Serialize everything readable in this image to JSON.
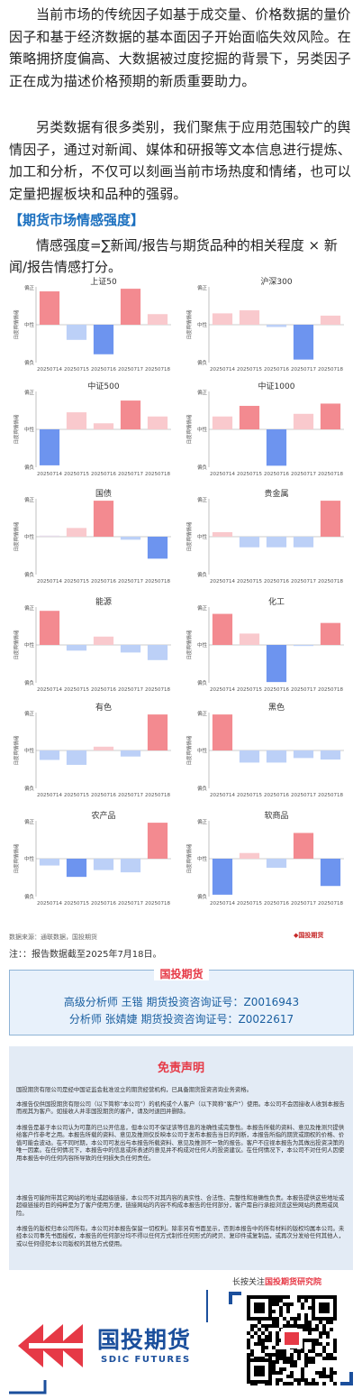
{
  "intro": {
    "p1": "当前市场的传统因子如基于成交量、价格数据的量价因子和基于经济数据的基本面因子开始面临失效风险。在策略拥挤度偏高、大数据被过度挖掘的背景下，另类因子正在成为描述价格预期的新质重要助力。",
    "p2": "另类数据有很多类别，我们聚焦于应用范围较广的舆情因子，通过对新闻、媒体和研报等文本信息进行提炼、加工和分析，不仅可以刻画当前市场热度和情绪，也可以定量把握板块和品种的强弱。"
  },
  "section_title": "【期货市场情感强度】",
  "formula": "情感强度=∑新闻/报告与期货品种的相关程度 × 新闻/报告情感打分。",
  "chart_common": {
    "ylabel": "日度舆情情绪",
    "ytick_top": "偏正",
    "ytick_mid": "中性",
    "ytick_bottom": "偏负",
    "dates": [
      "20250714",
      "20250715",
      "20250716",
      "20250717",
      "20250718"
    ]
  },
  "chart_data": [
    {
      "type": "bar",
      "title": "上证50",
      "categories": [
        "20250714",
        "20250715",
        "20250716",
        "20250717",
        "20250718"
      ],
      "values": [
        0.88,
        -0.4,
        -0.78,
        0.95,
        0.28
      ],
      "ylim": [
        -1,
        1
      ]
    },
    {
      "type": "bar",
      "title": "沪深300",
      "categories": [
        "20250714",
        "20250715",
        "20250716",
        "20250717",
        "20250718"
      ],
      "values": [
        0.3,
        0.38,
        -0.06,
        -0.92,
        0.24
      ],
      "ylim": [
        -1,
        1
      ]
    },
    {
      "type": "bar",
      "title": "中证500",
      "categories": [
        "20250714",
        "20250715",
        "20250716",
        "20250717",
        "20250718"
      ],
      "values": [
        -0.95,
        0.45,
        0.16,
        0.76,
        0.34
      ],
      "ylim": [
        -1,
        1
      ]
    },
    {
      "type": "bar",
      "title": "中证1000",
      "categories": [
        "20250714",
        "20250715",
        "20250716",
        "20250717",
        "20250718"
      ],
      "values": [
        0.34,
        0.62,
        -0.96,
        0.41,
        0.68
      ],
      "ylim": [
        -1,
        1
      ]
    },
    {
      "type": "bar",
      "title": "国债",
      "categories": [
        "20250714",
        "20250715",
        "20250716",
        "20250717",
        "20250718"
      ],
      "values": [
        0.03,
        0.23,
        0.95,
        -0.08,
        -0.58
      ],
      "ylim": [
        -1,
        1
      ]
    },
    {
      "type": "bar",
      "title": "贵金属",
      "categories": [
        "20250714",
        "20250715",
        "20250716",
        "20250717",
        "20250718"
      ],
      "values": [
        0.12,
        -0.28,
        -0.28,
        -0.28,
        0.95
      ],
      "ylim": [
        -1,
        1
      ]
    },
    {
      "type": "bar",
      "title": "能源",
      "categories": [
        "20250714",
        "20250715",
        "20250716",
        "20250717",
        "20250718"
      ],
      "values": [
        0.9,
        -0.15,
        0.22,
        -0.2,
        -0.4
      ],
      "ylim": [
        -1,
        1
      ]
    },
    {
      "type": "bar",
      "title": "化工",
      "categories": [
        "20250714",
        "20250715",
        "20250716",
        "20250717",
        "20250718"
      ],
      "values": [
        0.82,
        0.3,
        -0.98,
        -0.02,
        0.58
      ],
      "ylim": [
        -1,
        1
      ]
    },
    {
      "type": "bar",
      "title": "有色",
      "categories": [
        "20250714",
        "20250715",
        "20250716",
        "20250717",
        "20250718"
      ],
      "values": [
        -0.25,
        -0.38,
        0.1,
        -0.16,
        0.95
      ],
      "ylim": [
        -1,
        1
      ]
    },
    {
      "type": "bar",
      "title": "黑色",
      "categories": [
        "20250714",
        "20250715",
        "20250716",
        "20250717",
        "20250718"
      ],
      "values": [
        0.95,
        -0.32,
        -0.32,
        -0.2,
        -0.24
      ],
      "ylim": [
        -1,
        1
      ]
    },
    {
      "type": "bar",
      "title": "农产品",
      "categories": [
        "20250714",
        "20250715",
        "20250716",
        "20250717",
        "20250718"
      ],
      "values": [
        -0.18,
        -0.48,
        -0.3,
        -0.36,
        0.95
      ],
      "ylim": [
        -1,
        1
      ]
    },
    {
      "type": "bar",
      "title": "软商品",
      "categories": [
        "20250714",
        "20250715",
        "20250716",
        "20250717",
        "20250718"
      ],
      "values": [
        -0.95,
        0.15,
        -0.24,
        0.68,
        -0.72
      ],
      "ylim": [
        -1,
        1
      ]
    }
  ],
  "colors": {
    "pos_strong": "#f38a90",
    "pos_light": "#f9c9cd",
    "neg_strong": "#6d94ef",
    "neg_light": "#bcd0f7",
    "neutral_light": "#e6dcea",
    "brand_blue": "#1b4f9c",
    "brand_red": "#e63946"
  },
  "source": "数据来源：通联数据，国投期货",
  "source_logo": "国投期货",
  "note": "注：：报告数据截至2025年7月18日。",
  "org": {
    "name": "国投期货",
    "analysts": [
      "高级分析师 王锴 期货投资咨询证号：Z0016943",
      "分析师 张婧婕 期货投资咨询证号：Z0022617"
    ]
  },
  "disclaimer": {
    "title": "免责声明",
    "paragraphs": [
      "国投期货有限公司是经中国证监会批准设立的期货经营机构，已具备期货投资咨询业务资格。",
      "本报告仅供国投期货有限公司（以下简称“本公司”）的机构或个人客户（以下简称“客户”）使用。本公司不会因接收人收到本报告而视其为客户。如接收人并非国投期货的客户，请及时退回并删除。",
      "本报告是基于本公司认为可靠的已公开信息，但本公司不保证该等信息的准确性或完整性。本报告所载的资料、意见及推测只提供给客户作参考之用。本报告所载的资料、意见及推测仅反映本公司于发布本报告当日的判断，本报告所指的期货或期权的价格、价值可能会波动。在不同时期，本公司可发出与本报告所载资料、意见及推测不一致的报告。客户不应视本报告为其做出投资决策的唯一因素。在任何情况下，本报告中的信息或所表述的意见并不构成对任何人的投资建议。在任何情况下，本公司不对任何人因使用本报告中的任何内容所导致的任何损失负任何责任。",
      "本报告可能附带其它网站的地址或超级链接，本公司不对其内容的真实性、合法性、完整性和准确性负责。本报告提供这些地址或超级链接的目的纯粹是为了客户使用方便，链接网站的内容不构成本报告的任何部分，客户需自行承担浏览这些网站的费用或风险。",
      "本报告的版权归本公司所有。本公司对本报告保留一切权利。除非另有书面显示，否则本报告中的所有材料的版权均属本公司。未经本公司事先书面授权，本报告的任何部分均不得以任何方式制作任何形式的拷贝、复印件或复制品，或再次分发给任何其他人，或以任何侵犯本公司版权的其他方式使用。"
    ]
  },
  "follow": {
    "prefix": "长按关注",
    "name": "国投期货研究院"
  },
  "logo": {
    "cn": "国投期货",
    "en": "SDIC FUTURES"
  }
}
